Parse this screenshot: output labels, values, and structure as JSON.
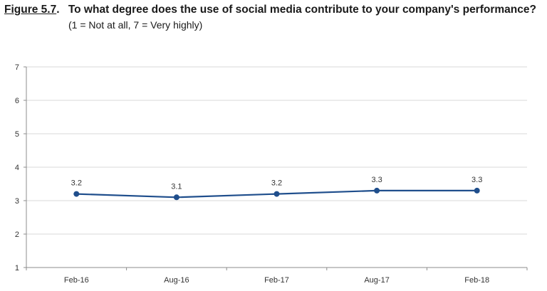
{
  "figure": {
    "label": "Figure 5.7",
    "title": "To what degree does the use of social media contribute to your company's performance?",
    "subtitle": "(1 = Not at all, 7 = Very highly)"
  },
  "chart_data": {
    "type": "line",
    "title": "To what degree does the use of social media contribute to your company's performance?",
    "subtitle": "(1 = Not at all, 7 = Very highly)",
    "xlabel": "",
    "ylabel": "",
    "categories": [
      "Feb-16",
      "Aug-16",
      "Feb-17",
      "Aug-17",
      "Feb-18"
    ],
    "series": [
      {
        "values": [
          3.2,
          3.1,
          3.2,
          3.3,
          3.3
        ],
        "data_labels": [
          "3.2",
          "3.1",
          "3.2",
          "3.3",
          "3.3"
        ],
        "color": "#1f4e8c"
      }
    ],
    "ylim": [
      1,
      7
    ],
    "yticks": [
      1,
      2,
      3,
      4,
      5,
      6,
      7
    ],
    "grid": "horizontal",
    "legend": "none"
  }
}
